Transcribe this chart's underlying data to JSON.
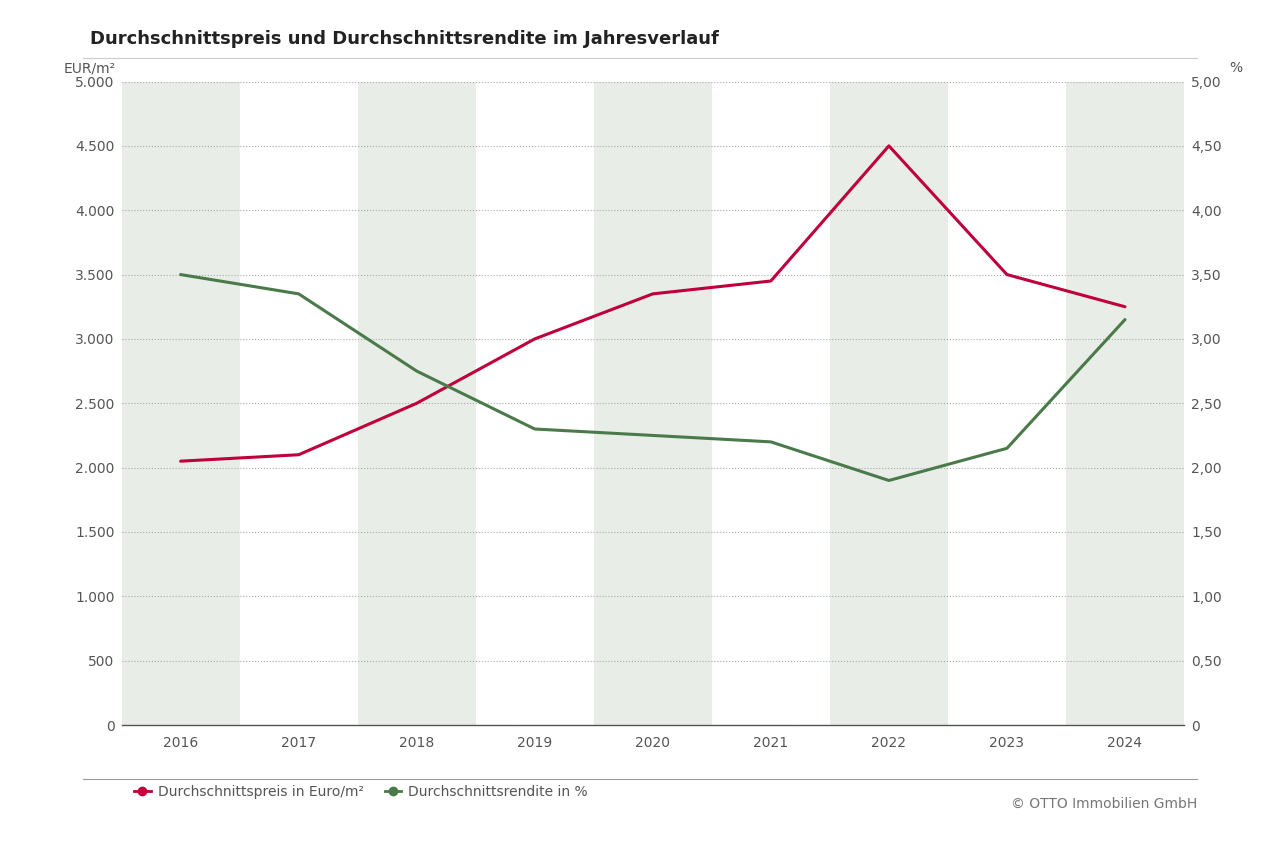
{
  "title": "Durchschnittspreis und Durchschnittsrendite im Jahresverlauf",
  "years": [
    2016,
    2017,
    2018,
    2019,
    2020,
    2021,
    2022,
    2023,
    2024
  ],
  "price": [
    2050,
    2100,
    2500,
    3000,
    3350,
    3450,
    4500,
    3500,
    3250
  ],
  "yield_vals": [
    3.5,
    3.35,
    2.75,
    2.3,
    2.25,
    2.2,
    1.9,
    2.15,
    3.15
  ],
  "price_color": "#c0003c",
  "yield_color": "#4a7a4a",
  "bg_color": "#ffffff",
  "band_color": "#e8ede8",
  "left_ylabel": "EUR/m²",
  "right_ylabel": "%",
  "legend_price": "Durchschnittspreis in Euro/m²",
  "legend_yield": "Durchschnittsrendite in %",
  "copyright": "© OTTO Immobilien GmbH",
  "ylim_left": [
    0,
    5000
  ],
  "ylim_right": [
    0,
    5.0
  ],
  "yticks_left": [
    0,
    500,
    1000,
    1500,
    2000,
    2500,
    3000,
    3500,
    4000,
    4500,
    5000
  ],
  "yticks_right": [
    0,
    0.5,
    1.0,
    1.5,
    2.0,
    2.5,
    3.0,
    3.5,
    4.0,
    4.5,
    5.0
  ],
  "shaded_years": [
    2016,
    2018,
    2020,
    2022,
    2024
  ],
  "xlim": [
    2015.5,
    2024.5
  ]
}
